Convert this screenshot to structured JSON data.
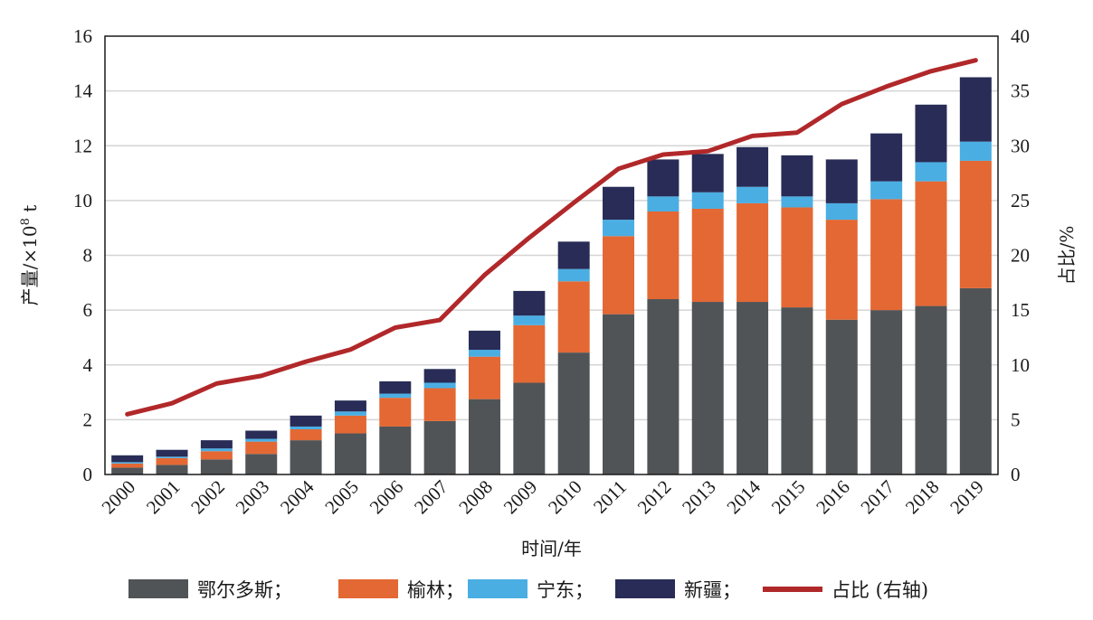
{
  "chart_data": {
    "type": "bar",
    "stacked": true,
    "categories": [
      "2000",
      "2001",
      "2002",
      "2003",
      "2004",
      "2005",
      "2006",
      "2007",
      "2008",
      "2009",
      "2010",
      "2011",
      "2012",
      "2013",
      "2014",
      "2015",
      "2016",
      "2017",
      "2018",
      "2019"
    ],
    "series": [
      {
        "name": "鄂尔多斯；",
        "color": "#505457",
        "values": [
          0.25,
          0.35,
          0.55,
          0.75,
          1.25,
          1.5,
          1.75,
          1.95,
          2.75,
          3.35,
          4.45,
          5.85,
          6.4,
          6.3,
          6.3,
          6.1,
          5.65,
          6.0,
          6.15,
          6.8
        ]
      },
      {
        "name": "榆林；",
        "color": "#E36834",
        "values": [
          0.15,
          0.25,
          0.3,
          0.45,
          0.4,
          0.65,
          1.05,
          1.2,
          1.55,
          2.1,
          2.6,
          2.85,
          3.2,
          3.4,
          3.6,
          3.65,
          3.65,
          4.05,
          4.55,
          4.65
        ]
      },
      {
        "name": "宁东；",
        "color": "#4AAEE3",
        "values": [
          0.05,
          0.05,
          0.1,
          0.1,
          0.1,
          0.15,
          0.15,
          0.2,
          0.25,
          0.35,
          0.45,
          0.6,
          0.55,
          0.6,
          0.6,
          0.4,
          0.6,
          0.65,
          0.7,
          0.7
        ]
      },
      {
        "name": "新疆；",
        "color": "#282C56",
        "values": [
          0.25,
          0.25,
          0.3,
          0.3,
          0.4,
          0.4,
          0.45,
          0.5,
          0.7,
          0.9,
          1.0,
          1.2,
          1.35,
          1.4,
          1.45,
          1.5,
          1.6,
          1.75,
          2.1,
          2.35
        ]
      }
    ],
    "line": {
      "name": "占比 (右轴)",
      "color": "#B1282A",
      "axis": "right",
      "values": [
        5.5,
        6.5,
        8.3,
        9.0,
        10.3,
        11.4,
        13.4,
        14.1,
        18.2,
        21.6,
        24.8,
        27.9,
        29.2,
        29.5,
        30.9,
        31.2,
        33.8,
        35.4,
        36.8,
        37.8
      ]
    },
    "title": "",
    "xlabel": "时间/年",
    "ylabel": "产量/×10",
    "ylabel_sup": "8",
    "ylabel_unit": " t",
    "y2label": "占比/%",
    "ylim": [
      0,
      16
    ],
    "y2lim": [
      0,
      40
    ],
    "yticks": [
      "0",
      "2",
      "4",
      "6",
      "8",
      "10",
      "12",
      "14",
      "16"
    ],
    "y2ticks": [
      "0",
      "5",
      "10",
      "15",
      "20",
      "25",
      "30",
      "35",
      "40"
    ],
    "grid": true,
    "legend_position": "bottom"
  }
}
